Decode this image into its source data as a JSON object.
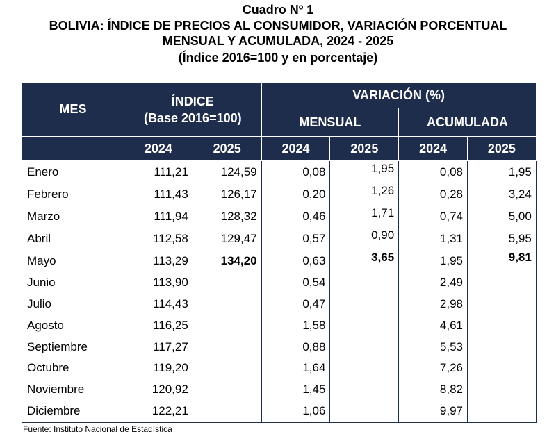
{
  "title": {
    "line1": "Cuadro Nº 1",
    "line2": "BOLIVIA: ÍNDICE DE PRECIOS AL CONSUMIDOR, VARIACIÓN PORCENTUAL",
    "line3": "MENSUAL Y ACUMULADA, 2024 - 2025",
    "line4": "(Índice 2016=100 y en porcentaje)"
  },
  "header": {
    "mes": "MES",
    "indice": "ÍNDICE",
    "indice_base": "(Base 2016=100)",
    "variacion": "VARIACIÓN (%)",
    "mensual": "MENSUAL",
    "acumulada": "ACUMULADA",
    "years": [
      "2024",
      "2025",
      "2024",
      "2025",
      "2024",
      "2025"
    ]
  },
  "rows": [
    {
      "mes": "Enero",
      "i2024": "111,21",
      "i2025": "124,59",
      "m2024": "0,08",
      "m2025": "1,95",
      "a2024": "0,08",
      "a2025": "1,95"
    },
    {
      "mes": "Febrero",
      "i2024": "111,43",
      "i2025": "126,17",
      "m2024": "0,20",
      "m2025": "1,26",
      "a2024": "0,28",
      "a2025": "3,24"
    },
    {
      "mes": "Marzo",
      "i2024": "111,94",
      "i2025": "128,32",
      "m2024": "0,46",
      "m2025": "1,71",
      "a2024": "0,74",
      "a2025": "5,00"
    },
    {
      "mes": "Abril",
      "i2024": "112,58",
      "i2025": "129,47",
      "m2024": "0,57",
      "m2025": "0,90",
      "a2024": "1,31",
      "a2025": "5,95"
    },
    {
      "mes": "Mayo",
      "i2024": "113,29",
      "i2025": "134,20",
      "m2024": "0,63",
      "m2025": "3,65",
      "a2024": "1,95",
      "a2025": "9,81"
    },
    {
      "mes": "Junio",
      "i2024": "113,90",
      "i2025": "",
      "m2024": "0,54",
      "m2025": "",
      "a2024": "2,49",
      "a2025": ""
    },
    {
      "mes": "Julio",
      "i2024": "114,43",
      "i2025": "",
      "m2024": "0,47",
      "m2025": "",
      "a2024": "2,98",
      "a2025": ""
    },
    {
      "mes": "Agosto",
      "i2024": "116,25",
      "i2025": "",
      "m2024": "1,58",
      "m2025": "",
      "a2024": "4,61",
      "a2025": ""
    },
    {
      "mes": "Septiembre",
      "i2024": "117,27",
      "i2025": "",
      "m2024": "0,88",
      "m2025": "",
      "a2024": "5,53",
      "a2025": ""
    },
    {
      "mes": "Octubre",
      "i2024": "119,20",
      "i2025": "",
      "m2024": "1,64",
      "m2025": "",
      "a2024": "7,26",
      "a2025": ""
    },
    {
      "mes": "Noviembre",
      "i2024": "120,92",
      "i2025": "",
      "m2024": "1,45",
      "m2025": "",
      "a2024": "8,82",
      "a2025": ""
    },
    {
      "mes": "Diciembre",
      "i2024": "122,21",
      "i2025": "",
      "m2024": "1,06",
      "m2025": "",
      "a2024": "9,97",
      "a2025": ""
    }
  ],
  "source": "Fuente: Instituto Nacional de Estadística",
  "colors": {
    "header_bg": "#1f2d4c",
    "header_text": "#ffffff"
  }
}
